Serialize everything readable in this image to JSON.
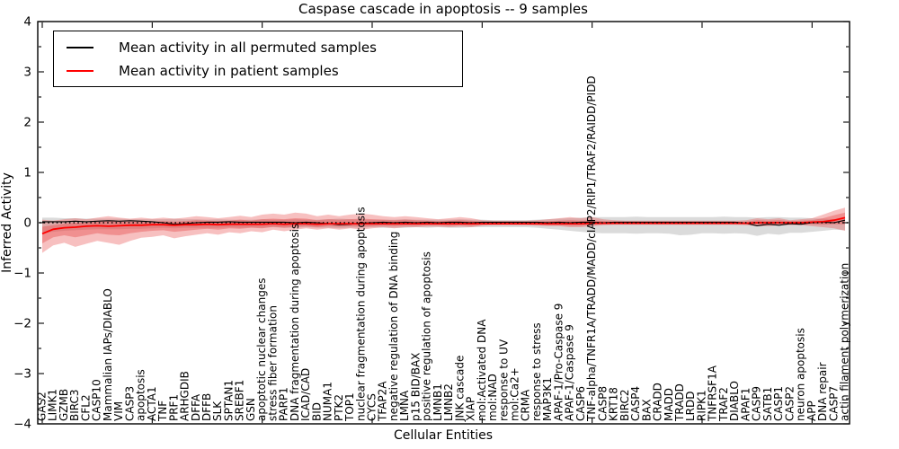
{
  "figure": {
    "title": "Caspase cascade in apoptosis -- 9 samples"
  },
  "chart_data": {
    "type": "line",
    "title": "Caspase cascade in apoptosis -- 9 samples",
    "xlabel": "Cellular Entities",
    "ylabel": "Inferred Activity",
    "ylim": [
      -4,
      4
    ],
    "ytick_major_step": 1,
    "ytick_minor_step": 0.5,
    "grid": false,
    "legend_position": "upper left",
    "zero_line": {
      "style": "dotted",
      "color": "#000000",
      "y": 0
    },
    "xtick_indices": [
      0,
      10,
      20,
      30,
      40,
      50,
      60,
      70
    ],
    "categories": [
      "GAS2",
      "LIMK1",
      "GZMB",
      "BIRC3",
      "CFL2",
      "CASP10",
      "Mammalian IAPs/DIABLO",
      "VIM",
      "CASP3",
      "apoptosis",
      "ACTA1",
      "TNF",
      "PRF1",
      "ARHGDIB",
      "DFFA",
      "DFFB",
      "SLK",
      "SPTAN1",
      "SREBF1",
      "GSN",
      "apoptotic nuclear changes",
      "stress fiber formation",
      "PARP1",
      "DNA fragmentation during apoptosis",
      "ICAD/CAD",
      "BID",
      "NUMA1",
      "PTK2",
      "TOP1",
      "nuclear fragmentation during apoptosis",
      "CYCS",
      "TFAP2A",
      "negative regulation of DNA binding",
      "LMNA",
      "p15 BID/BAX",
      "positive regulation of apoptosis",
      "LMNB1",
      "LMNB2",
      "JNK cascade",
      "XIAP",
      "mol:Activated DNA",
      "mol:NAD",
      "response to UV",
      "mol:Ca2+",
      "CRMA",
      "response to stress",
      "MAP3K1",
      "APAF-1/Pro-Caspase 9",
      "APAF-1/Caspase 9",
      "CASP6",
      "TNF-alpha/TNFR1A/TRADD/MADD/cIAP2/RIP1/TRAF2/RAIDD/PIDD",
      "CASP8",
      "KRT18",
      "BIRC2",
      "CASP4",
      "BAX",
      "CRADD",
      "MADD",
      "TRADD",
      "LRDD",
      "RIPK1",
      "TNFRSF1A",
      "TRAF2",
      "DIABLO",
      "APAF1",
      "CASP9",
      "SATB1",
      "CASP1",
      "CASP2",
      "neuron apoptosis",
      "APP",
      "DNA repair",
      "CASP7",
      "actin filament polymerization"
    ],
    "series": [
      {
        "name": "Mean activity in all permuted samples",
        "color": "#000000",
        "values": [
          0.02,
          0.02,
          0.02,
          0.03,
          0.02,
          0.03,
          0.04,
          0.03,
          0.04,
          0.03,
          0.02,
          0.0,
          -0.03,
          -0.02,
          0.0,
          0.01,
          0.01,
          0.02,
          0.01,
          0.01,
          0.01,
          0.01,
          0.01,
          0.0,
          0.01,
          0.0,
          -0.02,
          -0.04,
          -0.03,
          -0.01,
          0.0,
          0.01,
          0.0,
          0.01,
          0.0,
          0.01,
          0.0,
          0.01,
          0.01,
          0.0,
          0.01,
          0.01,
          0.01,
          0.01,
          0.01,
          0.01,
          0.0,
          0.01,
          0.0,
          0.01,
          0.01,
          0.0,
          0.01,
          0.01,
          0.01,
          0.01,
          0.01,
          0.01,
          0.01,
          0.01,
          0.01,
          0.01,
          0.01,
          0.01,
          -0.01,
          -0.06,
          -0.03,
          -0.05,
          -0.02,
          -0.03,
          0.0,
          0.01,
          0.0,
          0.05
        ],
        "band": {
          "fill": "rgba(125,125,125,0.28)",
          "upper": [
            0.1,
            0.1,
            0.09,
            0.09,
            0.08,
            0.08,
            0.08,
            0.08,
            0.07,
            0.07,
            0.07,
            0.07,
            0.08,
            0.07,
            0.07,
            0.06,
            0.07,
            0.06,
            0.06,
            0.06,
            0.07,
            0.06,
            0.06,
            0.07,
            0.06,
            0.06,
            0.07,
            0.08,
            0.07,
            0.06,
            0.06,
            0.06,
            0.06,
            0.07,
            0.06,
            0.06,
            0.06,
            0.06,
            0.07,
            0.06,
            0.06,
            0.05,
            0.05,
            0.05,
            0.05,
            0.06,
            0.07,
            0.08,
            0.09,
            0.1,
            0.11,
            0.11,
            0.11,
            0.11,
            0.12,
            0.11,
            0.11,
            0.11,
            0.11,
            0.11,
            0.11,
            0.11,
            0.12,
            0.11,
            0.11,
            0.1,
            0.11,
            0.11,
            0.1,
            0.1,
            0.09,
            0.08,
            0.07,
            0.08
          ],
          "lower": [
            -0.2,
            -0.18,
            -0.16,
            -0.15,
            -0.14,
            -0.13,
            -0.13,
            -0.13,
            -0.12,
            -0.12,
            -0.11,
            -0.1,
            -0.11,
            -0.1,
            -0.1,
            -0.1,
            -0.1,
            -0.09,
            -0.1,
            -0.09,
            -0.1,
            -0.09,
            -0.1,
            -0.1,
            -0.09,
            -0.1,
            -0.1,
            -0.11,
            -0.1,
            -0.1,
            -0.09,
            -0.1,
            -0.1,
            -0.1,
            -0.09,
            -0.1,
            -0.09,
            -0.1,
            -0.1,
            -0.09,
            -0.09,
            -0.09,
            -0.09,
            -0.09,
            -0.09,
            -0.1,
            -0.12,
            -0.14,
            -0.16,
            -0.18,
            -0.2,
            -0.21,
            -0.21,
            -0.21,
            -0.22,
            -0.21,
            -0.21,
            -0.22,
            -0.25,
            -0.24,
            -0.21,
            -0.21,
            -0.22,
            -0.21,
            -0.22,
            -0.26,
            -0.22,
            -0.24,
            -0.2,
            -0.2,
            -0.18,
            -0.16,
            -0.14,
            -0.15
          ]
        }
      },
      {
        "name": "Mean activity in patient samples",
        "color": "#ff0000",
        "values": [
          -0.22,
          -0.13,
          -0.1,
          -0.09,
          -0.07,
          -0.06,
          -0.07,
          -0.06,
          -0.05,
          -0.05,
          -0.04,
          -0.04,
          -0.05,
          -0.04,
          -0.04,
          -0.03,
          -0.04,
          -0.03,
          -0.03,
          -0.03,
          -0.03,
          -0.02,
          -0.03,
          -0.02,
          -0.02,
          -0.03,
          -0.02,
          -0.02,
          -0.02,
          -0.02,
          -0.02,
          -0.02,
          -0.02,
          -0.02,
          -0.02,
          -0.02,
          -0.02,
          -0.02,
          -0.02,
          -0.02,
          -0.02,
          -0.02,
          -0.02,
          -0.02,
          -0.02,
          -0.02,
          -0.02,
          -0.02,
          -0.02,
          -0.02,
          -0.01,
          -0.01,
          -0.01,
          -0.01,
          -0.01,
          -0.01,
          -0.01,
          -0.01,
          -0.01,
          -0.01,
          -0.01,
          -0.01,
          -0.01,
          -0.01,
          -0.01,
          0.0,
          0.0,
          0.0,
          0.0,
          0.0,
          0.01,
          0.02,
          0.05,
          0.1
        ],
        "band_outer": {
          "fill": "rgba(230,65,65,0.33)",
          "upper": [
            0.06,
            0.04,
            0.07,
            0.09,
            0.07,
            0.1,
            0.13,
            0.1,
            0.08,
            0.1,
            0.08,
            0.1,
            0.08,
            0.1,
            0.13,
            0.11,
            0.09,
            0.11,
            0.14,
            0.11,
            0.16,
            0.18,
            0.16,
            0.2,
            0.18,
            0.13,
            0.16,
            0.13,
            0.16,
            0.18,
            0.16,
            0.13,
            0.11,
            0.13,
            0.11,
            0.09,
            0.07,
            0.09,
            0.11,
            0.09,
            0.05,
            0.04,
            0.04,
            0.04,
            0.04,
            0.05,
            0.07,
            0.09,
            0.11,
            0.09,
            0.11,
            0.07,
            0.05,
            0.04,
            0.04,
            0.04,
            0.04,
            0.04,
            0.04,
            0.04,
            0.04,
            0.04,
            0.04,
            0.04,
            0.05,
            0.09,
            0.07,
            0.09,
            0.05,
            0.07,
            0.09,
            0.16,
            0.24,
            0.3
          ],
          "lower": [
            -0.6,
            -0.45,
            -0.4,
            -0.48,
            -0.42,
            -0.36,
            -0.4,
            -0.44,
            -0.36,
            -0.3,
            -0.28,
            -0.25,
            -0.31,
            -0.27,
            -0.24,
            -0.21,
            -0.24,
            -0.19,
            -0.21,
            -0.17,
            -0.19,
            -0.14,
            -0.17,
            -0.14,
            -0.11,
            -0.14,
            -0.11,
            -0.14,
            -0.11,
            -0.14,
            -0.11,
            -0.09,
            -0.11,
            -0.09,
            -0.09,
            -0.08,
            -0.08,
            -0.09,
            -0.08,
            -0.09,
            -0.06,
            -0.05,
            -0.05,
            -0.05,
            -0.05,
            -0.06,
            -0.07,
            -0.07,
            -0.09,
            -0.09,
            -0.07,
            -0.05,
            -0.04,
            -0.04,
            -0.04,
            -0.04,
            -0.04,
            -0.04,
            -0.04,
            -0.04,
            -0.04,
            -0.04,
            -0.04,
            -0.04,
            -0.05,
            -0.07,
            -0.07,
            -0.05,
            -0.05,
            -0.05,
            -0.07,
            -0.09,
            -0.11,
            -0.16
          ]
        },
        "band_inner": {
          "fill": "rgba(230,65,65,0.38)",
          "upper": [
            -0.08,
            -0.05,
            -0.02,
            0.0,
            0.0,
            0.02,
            0.03,
            0.02,
            0.02,
            0.03,
            0.02,
            0.03,
            0.02,
            0.03,
            0.05,
            0.04,
            0.03,
            0.04,
            0.06,
            0.04,
            0.07,
            0.08,
            0.07,
            0.09,
            0.08,
            0.05,
            0.07,
            0.06,
            0.07,
            0.08,
            0.07,
            0.06,
            0.05,
            0.06,
            0.05,
            0.04,
            0.03,
            0.04,
            0.05,
            0.04,
            0.02,
            0.01,
            0.01,
            0.01,
            0.01,
            0.02,
            0.03,
            0.04,
            0.05,
            0.04,
            0.05,
            0.03,
            0.02,
            0.02,
            0.02,
            0.02,
            0.02,
            0.02,
            0.02,
            0.02,
            0.02,
            0.02,
            0.02,
            0.02,
            0.02,
            0.05,
            0.04,
            0.05,
            0.03,
            0.04,
            0.05,
            0.09,
            0.15,
            0.2
          ],
          "lower": [
            -0.41,
            -0.29,
            -0.25,
            -0.29,
            -0.25,
            -0.21,
            -0.24,
            -0.25,
            -0.21,
            -0.18,
            -0.16,
            -0.15,
            -0.18,
            -0.16,
            -0.14,
            -0.12,
            -0.14,
            -0.11,
            -0.12,
            -0.1,
            -0.11,
            -0.08,
            -0.1,
            -0.08,
            -0.07,
            -0.09,
            -0.07,
            -0.08,
            -0.07,
            -0.08,
            -0.07,
            -0.06,
            -0.07,
            -0.06,
            -0.06,
            -0.05,
            -0.05,
            -0.06,
            -0.05,
            -0.06,
            -0.04,
            -0.04,
            -0.04,
            -0.04,
            -0.04,
            -0.04,
            -0.05,
            -0.05,
            -0.06,
            -0.06,
            -0.04,
            -0.03,
            -0.03,
            -0.03,
            -0.03,
            -0.03,
            -0.03,
            -0.03,
            -0.03,
            -0.03,
            -0.03,
            -0.03,
            -0.03,
            -0.03,
            -0.03,
            -0.04,
            -0.04,
            -0.03,
            -0.03,
            -0.03,
            -0.03,
            -0.04,
            -0.03,
            -0.03
          ]
        }
      }
    ]
  }
}
